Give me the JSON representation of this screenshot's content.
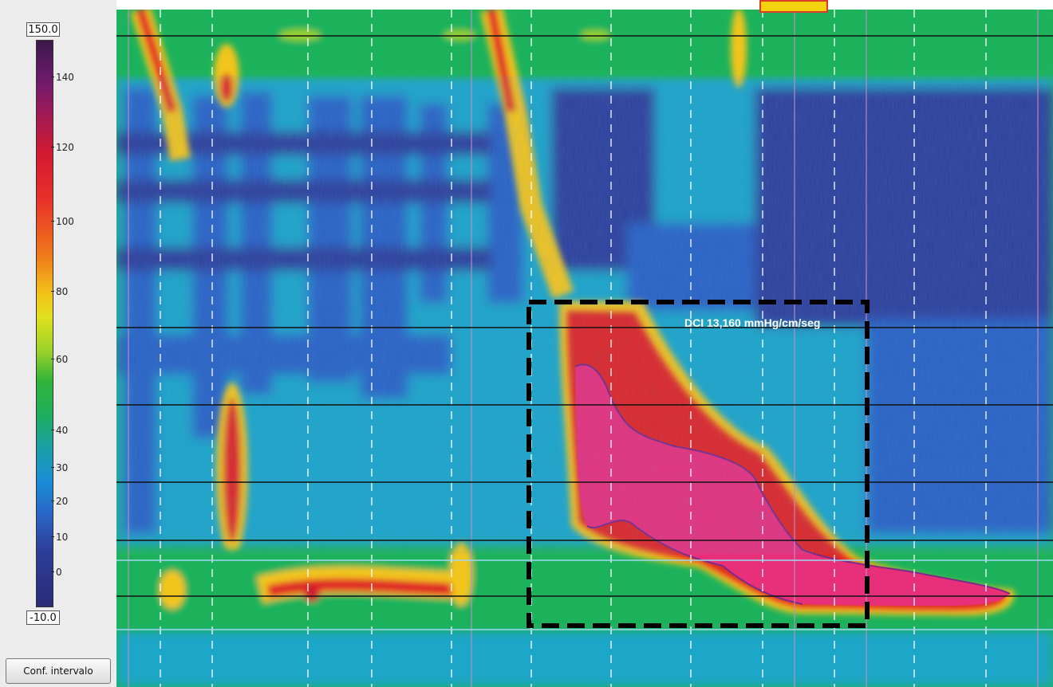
{
  "scale": {
    "max_label": "150.0",
    "min_label": "-10.0",
    "ticks": [
      "140",
      "120",
      "100",
      "80",
      "60",
      "40",
      "30",
      "20",
      "10",
      "0"
    ]
  },
  "buttons": {
    "conf_intervalo": "Conf. intervalo"
  },
  "annotation": {
    "dci": "DCI 13,160 mmHg/cm/seg"
  },
  "colors": {
    "background_green": "#1fae5a",
    "cyan": "#1aa6c8",
    "blue": "#2a64c4",
    "dark_blue": "#2d3f9a",
    "yellow": "#f2d21a",
    "red": "#e02828",
    "magenta": "#e8307a",
    "dashed_box": "#000000",
    "sensor_line": "#000000"
  }
}
